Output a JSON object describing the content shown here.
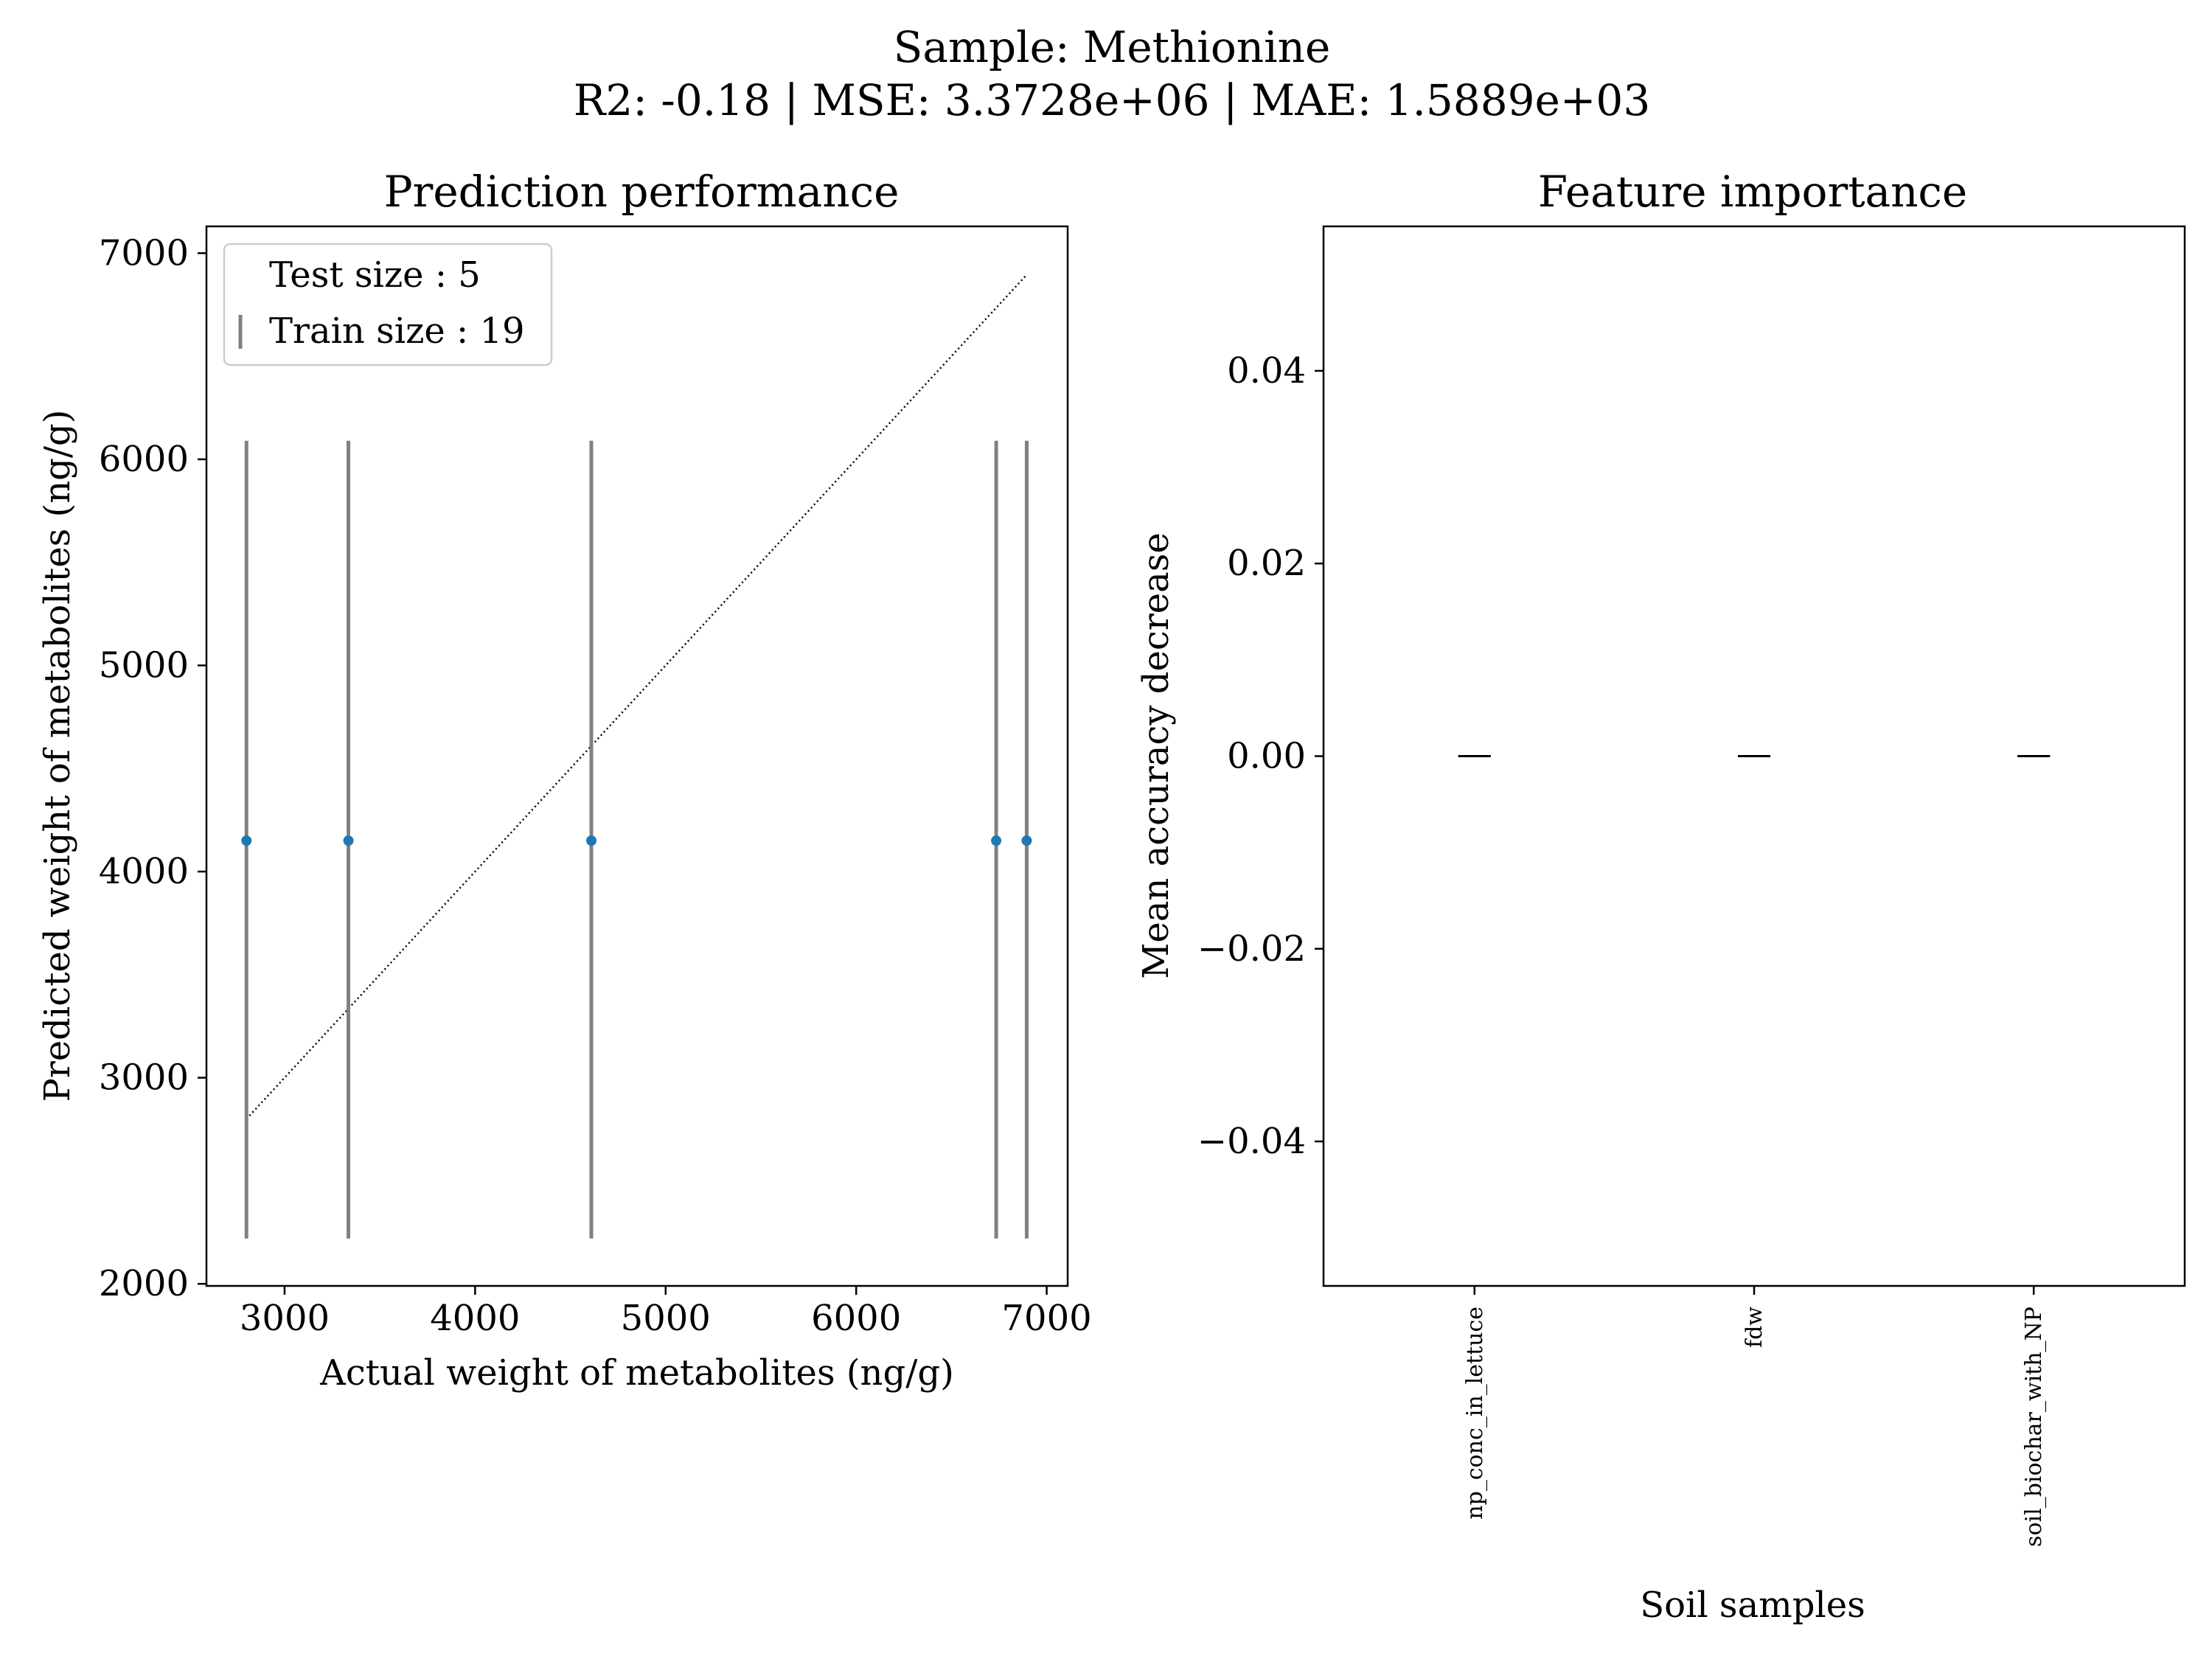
{
  "suptitle": {
    "line1": "Sample: Methionine",
    "line2": "R2: -0.18 | MSE: 3.3728e+06 | MAE: 1.5889e+03"
  },
  "chart_data": [
    {
      "type": "scatter",
      "title": "Prediction performance",
      "xlabel": "Actual weight of metabolites (ng/g)",
      "ylabel": "Predicted weight of metabolites (ng/g)",
      "xlim": [
        2590,
        7110
      ],
      "ylim": [
        1990,
        7130
      ],
      "xticks": [
        3000,
        4000,
        5000,
        6000,
        7000
      ],
      "yticks": [
        2000,
        3000,
        4000,
        5000,
        6000,
        7000
      ],
      "legend": {
        "placement": "upper-left",
        "entries": [
          "Test size : 5",
          "Train size : 19"
        ]
      },
      "points": {
        "x": [
          2800,
          3335,
          4610,
          6735,
          6895
        ],
        "y": [
          4150,
          4150,
          4150,
          4150,
          4150
        ],
        "color": "#1f77b4"
      },
      "error_bars": {
        "lower": 2220,
        "upper": 6090,
        "color": "#808080"
      },
      "identity_line": {
        "x": [
          2800,
          6895
        ],
        "y": [
          2800,
          6895
        ]
      }
    },
    {
      "type": "bar",
      "title": "Feature importance",
      "xlabel": "Soil samples",
      "ylabel": "Mean accuracy decrease",
      "categories": [
        "np_conc_in_lettuce",
        "fdw",
        "soil_biochar_with_NP"
      ],
      "values": [
        0.0,
        0.0,
        0.0
      ],
      "errors": [
        0.0,
        0.0,
        0.0
      ],
      "ylim": [
        -0.055,
        0.055
      ],
      "yticks": [
        -0.04,
        -0.02,
        0.0,
        0.02,
        0.04
      ],
      "ytick_labels": [
        "−0.04",
        "−0.02",
        "0.00",
        "0.02",
        "0.04"
      ]
    }
  ]
}
